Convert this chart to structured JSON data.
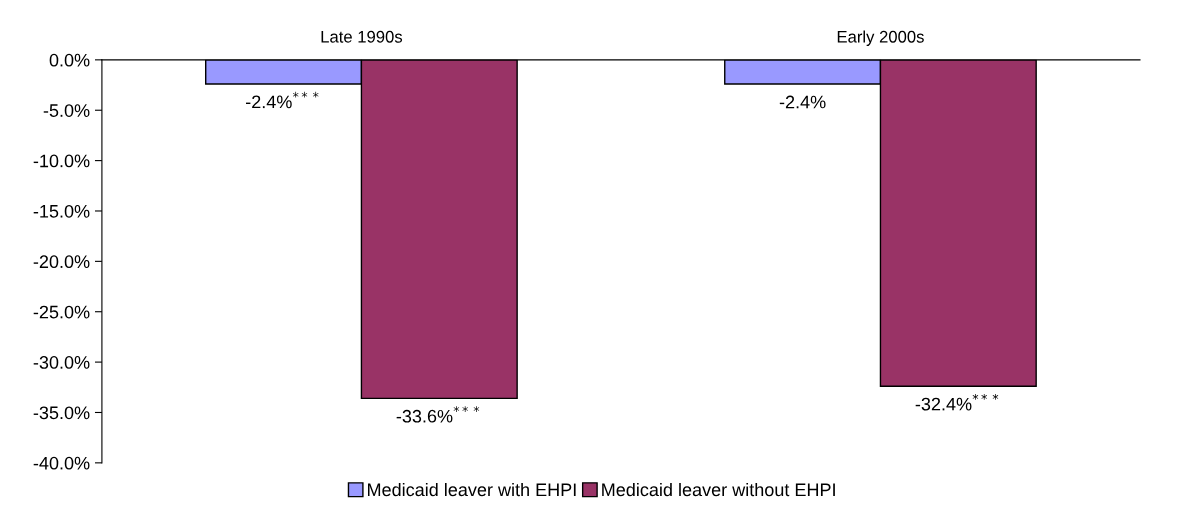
{
  "chart_data": {
    "type": "bar",
    "categories": [
      "Late 1990s",
      "Early 2000s"
    ],
    "series": [
      {
        "name": "Medicaid leaver with EHPI",
        "color": "#9999ff",
        "values": [
          -2.4,
          -2.4
        ],
        "value_labels": [
          "-2.4%$^{***}$",
          "-2.4%"
        ]
      },
      {
        "name": "Medicaid leaver without EHPI",
        "color": "#993366",
        "values": [
          -33.6,
          -32.4
        ],
        "value_labels": [
          "-33.6%$^{***}$",
          "-32.4%$^{***}$"
        ]
      }
    ],
    "ylim": [
      -40,
      0
    ],
    "yticks": [
      {
        "value": 0,
        "label": "0.0%"
      },
      {
        "value": -5,
        "label": "-5.0%"
      },
      {
        "value": -10,
        "label": "-10.0%"
      },
      {
        "value": -15,
        "label": "-15.0%"
      },
      {
        "value": -20,
        "label": "-20.0%"
      },
      {
        "value": -25,
        "label": "-25.0%"
      },
      {
        "value": -30,
        "label": "-30.0%"
      },
      {
        "value": -35,
        "label": "-35.0%"
      },
      {
        "value": -40,
        "label": "-40.0%"
      }
    ],
    "grid": false,
    "legend": "bottom"
  }
}
